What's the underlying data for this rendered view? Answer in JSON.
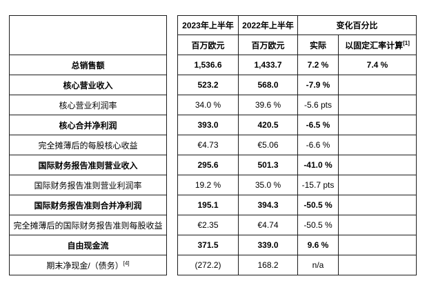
{
  "table": {
    "header": {
      "col_2023": "2023年上半年",
      "col_2022": "2022年上半年",
      "change_label": "变化百分比",
      "unit_2023": "百万欧元",
      "unit_2022": "百万欧元",
      "actual_label": "实际",
      "cer_label": "以固定汇率计算",
      "cer_sup": "[1]"
    },
    "rows": [
      {
        "label": "总销售额",
        "bold": true,
        "v2023": "1,536.6",
        "v2022": "1,433.7",
        "actual": "7.2 %",
        "cer": "7.4 %"
      },
      {
        "label": "核心营业收入",
        "bold": true,
        "v2023": "523.2",
        "v2022": "568.0",
        "actual": "-7.9 %",
        "cer": ""
      },
      {
        "label": "核心营业利润率",
        "bold": false,
        "v2023": "34.0 %",
        "v2022": "39.6 %",
        "actual": "-5.6 pts",
        "cer": ""
      },
      {
        "label": "核心合并净利润",
        "bold": true,
        "v2023": "393.0",
        "v2022": "420.5",
        "actual": "-6.5 %",
        "cer": ""
      },
      {
        "label": "完全摊薄后的每股核心收益",
        "bold": false,
        "v2023": "€4.73",
        "v2022": "€5.06",
        "actual": "-6.6 %",
        "cer": ""
      },
      {
        "label": "国际财务报告准则营业收入",
        "bold": true,
        "v2023": "295.6",
        "v2022": "501.3",
        "actual": "-41.0 %",
        "cer": ""
      },
      {
        "label": "国际财务报告准则营业利润率",
        "bold": false,
        "v2023": "19.2 %",
        "v2022": "35.0 %",
        "actual": "-15.7 pts",
        "cer": ""
      },
      {
        "label": "国际财务报告准则合并净利润",
        "bold": true,
        "v2023": "195.1",
        "v2022": "394.3",
        "actual": "-50.5 %",
        "cer": ""
      },
      {
        "label": "完全摊薄后的国际财务报告准则每股收益",
        "bold": false,
        "v2023": "€2.35",
        "v2022": "€4.74",
        "actual": "-50.5 %",
        "cer": ""
      },
      {
        "label": "自由现金流",
        "bold": true,
        "v2023": "371.5",
        "v2022": "339.0",
        "actual": "9.6 %",
        "cer": ""
      },
      {
        "label": "期末净现金/（债务）",
        "label_sup": "[4]",
        "bold": false,
        "v2023": "(272.2)",
        "v2022": "168.2",
        "actual": "n/a",
        "cer": ""
      }
    ]
  },
  "colors": {
    "border": "#1a1a1a",
    "background": "#ffffff",
    "text": "#000000"
  }
}
